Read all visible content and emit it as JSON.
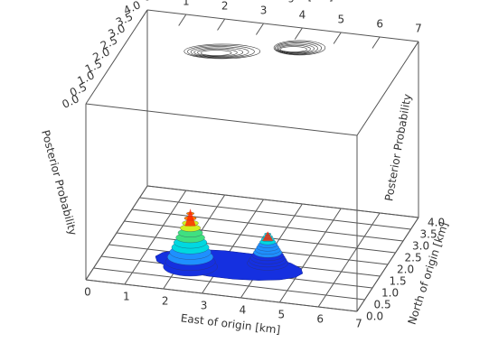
{
  "chart_data": {
    "type": "surface3d",
    "xlabel": "East of origin [km]",
    "ylabel": "North of origin [km]",
    "zlabel": "Posterior Probability",
    "xlim": [
      0,
      7
    ],
    "xticks": [
      0,
      1,
      2,
      3,
      4,
      5,
      6,
      7
    ],
    "ylim": [
      0,
      4
    ],
    "yticks": [
      {
        "value": 0,
        "label": "0.0"
      },
      {
        "value": 0.5,
        "label": "0.5"
      },
      {
        "value": 1,
        "label": "1.0"
      },
      {
        "value": 1.5,
        "label": "1.5"
      },
      {
        "value": 2,
        "label": "2.0"
      },
      {
        "value": 2.5,
        "label": "2.5"
      },
      {
        "value": 3,
        "label": "3.0"
      },
      {
        "value": 3.5,
        "label": "3.5"
      },
      {
        "value": 4,
        "label": "4.0"
      }
    ],
    "zlim": [
      0,
      1
    ],
    "peaks": {
      "x": [
        2.3,
        4.1
      ],
      "y": [
        1.0,
        1.5
      ],
      "z": [
        0.33,
        0.18
      ]
    }
  }
}
